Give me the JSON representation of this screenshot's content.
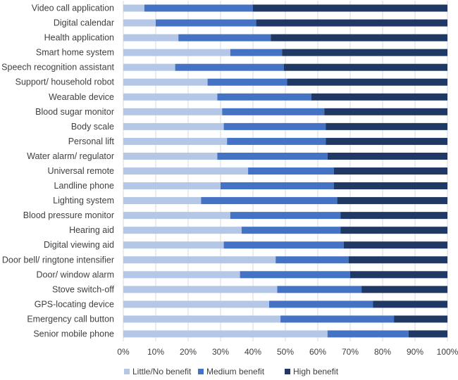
{
  "chart_data": {
    "type": "bar",
    "orientation": "horizontal",
    "stacked": "100%",
    "title": "",
    "xlabel": "",
    "ylabel": "",
    "xlim": [
      0,
      100
    ],
    "x_ticks": [
      "0%",
      "10%",
      "20%",
      "30%",
      "40%",
      "50%",
      "60%",
      "70%",
      "80%",
      "90%",
      "100%"
    ],
    "grid": true,
    "legend_position": "bottom",
    "categories": [
      "Video call application",
      "Digital calendar",
      "Health application",
      "Smart home system",
      "Speech recognition assistant",
      "Support/ household robot",
      "Wearable device",
      "Blood sugar monitor",
      "Body scale",
      "Personal lift",
      "Water alarm/ regulator",
      "Universal remote",
      "Landline phone",
      "Lighting system",
      "Blood pressure monitor",
      "Hearing aid",
      "Digital viewing aid",
      "Door bell/ ringtone intensifier",
      "Door/ window alarm",
      "Stove switch-off",
      "GPS-locating device",
      "Emergency call button",
      "Senior mobile phone"
    ],
    "series": [
      {
        "name": "Little/No benefit",
        "color": "#b4c7e7",
        "values": [
          6.5,
          10,
          17,
          33,
          16,
          26,
          29,
          30.5,
          31,
          32,
          29,
          38.5,
          30,
          24,
          33,
          36.5,
          31,
          47,
          36,
          47.5,
          45,
          48.5,
          63
        ]
      },
      {
        "name": "Medium benefit",
        "color": "#4472c4",
        "values": [
          33.5,
          31,
          28.5,
          16,
          33.5,
          24.5,
          29,
          31.5,
          31.5,
          30.5,
          34,
          26.5,
          35,
          42,
          34,
          30.5,
          37,
          22.5,
          34,
          26,
          32,
          35,
          25
        ]
      },
      {
        "name": "High benefit",
        "color": "#203864",
        "values": [
          60,
          59,
          54.5,
          51,
          50.5,
          49.5,
          42,
          38,
          37.5,
          37.5,
          37,
          35,
          35,
          34,
          33,
          33,
          32,
          30.5,
          30,
          26.5,
          23,
          16.5,
          12
        ]
      }
    ]
  }
}
